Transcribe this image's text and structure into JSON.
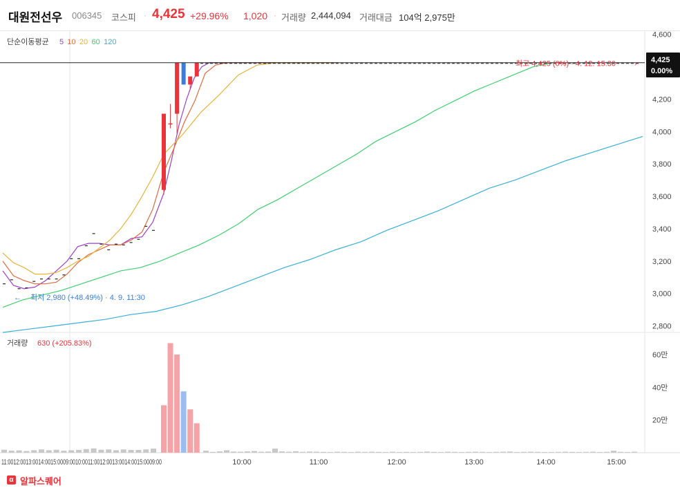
{
  "header": {
    "name": "대원전선우",
    "code": "006345",
    "market": "코스피",
    "price": "4,425",
    "change_pct": "+29.96%",
    "change_amt": "1,020",
    "volume_label": "거래량",
    "volume_value": "2,444,094",
    "amount_label": "거래대금",
    "amount_value": "104억 2,975만",
    "separator": "·"
  },
  "footer": {
    "brand_icon": "α",
    "brand": "알파스퀘어"
  },
  "colors": {
    "up": "#e8343a",
    "down": "#3b7ddd",
    "ma5": "#9b3fc8",
    "ma10": "#e06a3c",
    "ma20": "#e8b43a",
    "ma60": "#3ecf6e",
    "ma120": "#3aaed8",
    "up_volume": "#f5a3a6",
    "down_volume": "#9cbdf0",
    "flat_volume": "#c8c8c8"
  },
  "chart_data": {
    "type": "candlestick",
    "interval_minutes": 10,
    "session": "intraday, 09:00–15:30, preceded by premarket ticks",
    "price_axis": {
      "ylim": [
        2760,
        4620
      ],
      "ticks": [
        "4,600",
        "4,400",
        "4,200",
        "4,000",
        "3,800",
        "3,600",
        "3,400",
        "3,200",
        "3,000",
        "2,800"
      ]
    },
    "time_axis": {
      "ticks": [
        "10:00",
        "11:00",
        "12:00",
        "13:00",
        "14:00",
        "15:00"
      ],
      "premarket_label": "11:0012:0013:0014:0015:0009:0010:0011:0012:0013:0014:0015:0009:00"
    },
    "ma_legend": {
      "title": "단순이동평균",
      "periods": [
        "5",
        "10",
        "20",
        "60",
        "120"
      ]
    },
    "last_price_tag": {
      "price": "4,425",
      "pct": "0.00%"
    },
    "high_annotation": "최고 4,425 (0%) · 4. 12. 15:30",
    "low_annotation": "최저 2,980 (+48.49%) · 4. 9. 11:30",
    "premarket_ticks": [
      3060,
      3085,
      3030,
      3035,
      3075,
      3090,
      3090,
      3090,
      3115,
      3215,
      3215,
      3295,
      3370,
      3305,
      3270,
      3305,
      3300,
      3315,
      3335,
      3415,
      3390
    ],
    "candles": [
      {
        "open": 3640,
        "high": 4110,
        "low": 3610,
        "close": 4110
      },
      {
        "open": 4050,
        "high": 4170,
        "low": 4020,
        "close": 4050
      },
      {
        "open": 4110,
        "high": 4425,
        "low": 3990,
        "close": 4425
      },
      {
        "open": 4425,
        "high": 4425,
        "low": 4290,
        "close": 4290
      },
      {
        "open": 4290,
        "high": 4340,
        "low": 4260,
        "close": 4340
      },
      {
        "open": 4340,
        "high": 4425,
        "low": 4340,
        "close": 4425
      }
    ],
    "ma5": [
      3140,
      3050,
      3030,
      3040,
      3080,
      3140,
      3200,
      3290,
      3310,
      3310,
      3300,
      3300,
      3340,
      3350,
      3440,
      3620,
      3820,
      4040,
      4200,
      4330,
      4400,
      4425,
      4425,
      4425,
      4425,
      4425,
      4425,
      4425,
      4425,
      4425,
      4425,
      4425,
      4425,
      4425,
      4425
    ],
    "ma10": [
      3200,
      3110,
      3080,
      3060,
      3060,
      3070,
      3120,
      3190,
      3240,
      3270,
      3300,
      3300,
      3330,
      3380,
      3520,
      3750,
      3900,
      4060,
      4190,
      4360,
      4410,
      4425,
      4425,
      4425,
      4425,
      4425,
      4425,
      4425,
      4425,
      4425,
      4425,
      4425,
      4425,
      4425,
      4425
    ],
    "ma20": [
      3250,
      3190,
      3160,
      3120,
      3120,
      3130,
      3160,
      3200,
      3230,
      3280,
      3330,
      3400,
      3490,
      3600,
      3720,
      3860,
      3980,
      4120,
      4230,
      4350,
      4410,
      4425,
      4425,
      4425,
      4425,
      4425,
      4425,
      4425,
      4425,
      4425,
      4425,
      4425,
      4425,
      4425,
      4425
    ],
    "ma60": [
      2915,
      2960,
      2990,
      3020,
      3060,
      3100,
      3140,
      3160,
      3200,
      3250,
      3300,
      3360,
      3430,
      3520,
      3580,
      3650,
      3720,
      3790,
      3860,
      3940,
      4000,
      4060,
      4130,
      4190,
      4250,
      4300,
      4350,
      4400,
      4425
    ],
    "ma120": [
      2760,
      2780,
      2800,
      2820,
      2840,
      2870,
      2890,
      2930,
      2980,
      3040,
      3100,
      3160,
      3210,
      3270,
      3320,
      3390,
      3450,
      3510,
      3580,
      3650,
      3700,
      3760,
      3820,
      3870,
      3920,
      3970
    ],
    "volume": {
      "label": "거래량",
      "last": "630 (+205.83%)",
      "ticks": [
        "60만",
        "40만",
        "20만"
      ],
      "ylim": [
        0,
        700000
      ],
      "premarket": [
        18000,
        12000,
        14000,
        10000,
        15000,
        20000,
        15000,
        18000,
        12000,
        15000,
        17000,
        22000,
        26000,
        18000,
        20000,
        15000,
        20000,
        17000,
        17000,
        20000,
        25000
      ],
      "session": [
        290000,
        670000,
        600000,
        375000,
        265000,
        180000
      ],
      "session_dir": [
        "up",
        "up",
        "up",
        "down",
        "up",
        "up"
      ],
      "trailing": [
        12000,
        5000,
        8000,
        15000,
        7000,
        6000,
        8000,
        10000,
        6000,
        7000,
        25000,
        8000,
        6000,
        9000,
        5000,
        7000,
        6000,
        5000,
        4000,
        6000,
        5000,
        4000,
        6000,
        5000,
        6000,
        5000,
        4000,
        6000,
        4000,
        5000,
        4000,
        5000,
        7000,
        5000,
        4000,
        6000,
        5000,
        4000,
        5000,
        6000,
        5000,
        4000,
        5000,
        6000,
        7000,
        4000,
        5000,
        6000,
        5000,
        4000,
        4000,
        5000,
        6000,
        5000,
        4000,
        5000,
        6000,
        4000,
        5000,
        12000,
        5000,
        4000,
        6000
      ]
    }
  }
}
